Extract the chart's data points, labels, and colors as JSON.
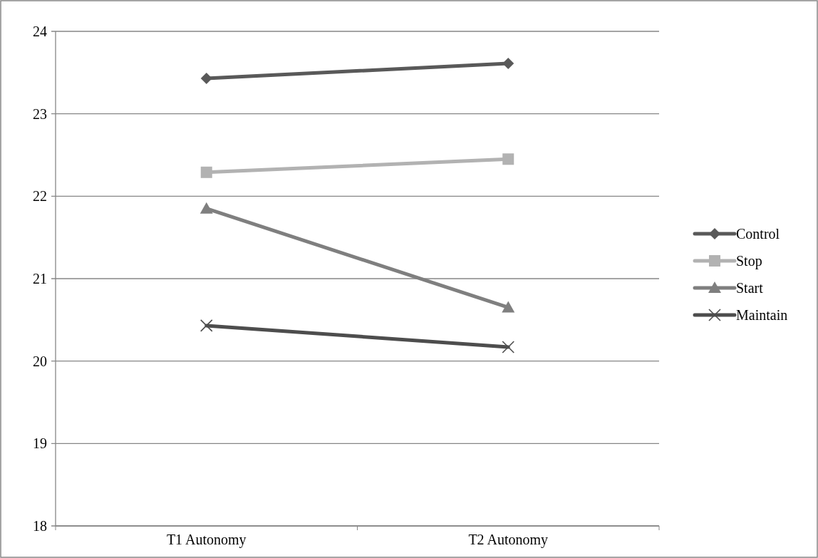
{
  "chart_data": {
    "type": "line",
    "categories": [
      "T1 Autonomy",
      "T2 Autonomy"
    ],
    "series": [
      {
        "name": "Control",
        "color": "#595959",
        "values": [
          23.43,
          23.61
        ],
        "marker": "diamond"
      },
      {
        "name": "Stop",
        "color": "#b2b2b2",
        "values": [
          22.29,
          22.45
        ],
        "marker": "square"
      },
      {
        "name": "Start",
        "color": "#7f7f7f",
        "values": [
          21.85,
          20.65
        ],
        "marker": "triangle"
      },
      {
        "name": "Maintain",
        "color": "#4d4d4d",
        "values": [
          20.43,
          20.17
        ],
        "marker": "cross"
      }
    ],
    "ylim": [
      18,
      24
    ],
    "yticks": [
      18,
      19,
      20,
      21,
      22,
      23,
      24
    ],
    "grid": "y",
    "legend": "right",
    "line_style": "solid"
  }
}
